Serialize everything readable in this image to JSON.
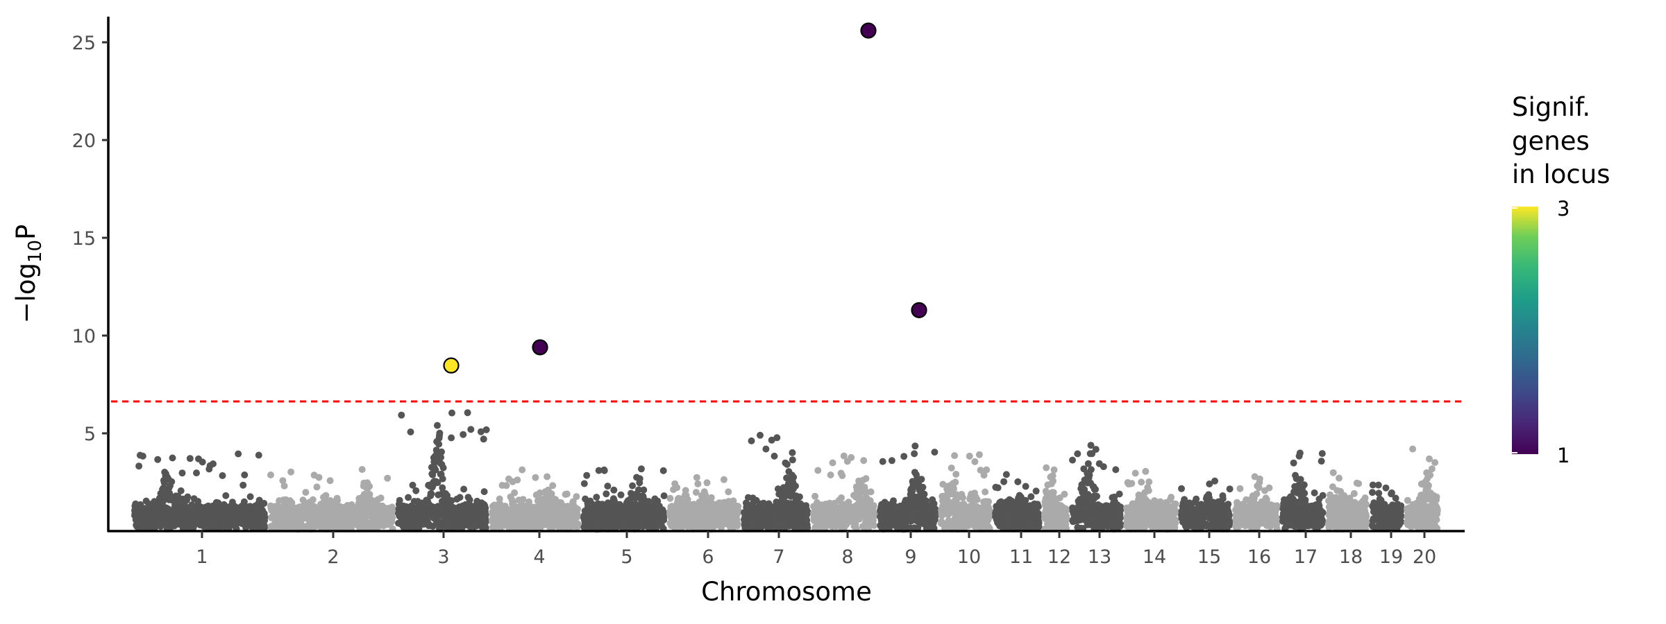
{
  "chart_data": {
    "type": "scatter",
    "subtype": "manhattan",
    "xlabel": "Chromosome",
    "ylabel_prefix": "−log",
    "ylabel_sub": "10",
    "ylabel_suffix": "P",
    "ylim": [
      0,
      26
    ],
    "y_ticks": [
      5,
      10,
      15,
      20,
      25
    ],
    "x_tick_labels": [
      "1",
      "2",
      "3",
      "4",
      "5",
      "6",
      "7",
      "8",
      "9",
      "10",
      "11",
      "12",
      "13",
      "14",
      "15",
      "16",
      "17",
      "18",
      "19",
      "20"
    ],
    "grid": false,
    "chromosome_colors": [
      "#555555",
      "#aaaaaa"
    ],
    "significance_threshold": 6.63,
    "threshold_color": "#ff0000",
    "background_peak_max_by_chromosome": [
      4.0,
      3.2,
      6.7,
      3.3,
      3.2,
      2.8,
      4.9,
      4.0,
      4.5,
      4.0,
      3.0,
      3.4,
      4.4,
      3.1,
      2.7,
      3.0,
      4.0,
      3.0,
      2.6,
      4.5
    ],
    "highlighted_loci": [
      {
        "chromosome": "3",
        "value": 8.47,
        "signif_genes": 3
      },
      {
        "chromosome": "4",
        "value": 9.4,
        "signif_genes": 1
      },
      {
        "chromosome": "8",
        "value": 25.6,
        "signif_genes": 1
      },
      {
        "chromosome": "9",
        "value": 11.3,
        "signif_genes": 1
      }
    ],
    "legend": {
      "title_lines": [
        "Signif.",
        "genes",
        "in locus"
      ],
      "range": [
        1,
        3
      ],
      "tick_labels": [
        "3",
        "1"
      ],
      "colormap": "viridis",
      "placement": "right"
    }
  }
}
